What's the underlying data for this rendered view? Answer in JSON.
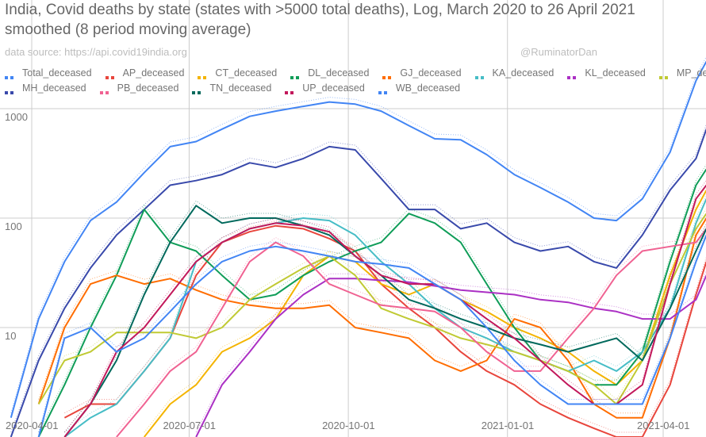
{
  "chart_data": {
    "type": "line",
    "title": "India, Covid deaths by state (states with >5000 total deaths), Log, March 2020 to 26 April 2021",
    "subtitle": "smoothed (8 period moving average)",
    "source": "data source: https://api.covid19india.org",
    "credit": "@RuminatorDan",
    "xlabel": "",
    "ylabel": "",
    "yscale": "log",
    "ylim": [
      1,
      3000
    ],
    "xlim": [
      "2020-03-14",
      "2021-04-26"
    ],
    "grid": true,
    "legend_position": "top",
    "y_ticks": [
      "1000",
      "100",
      "10"
    ],
    "y_tick_values": [
      1000,
      100,
      10
    ],
    "x_ticks": [
      "2020-04-01",
      "2020-07-01",
      "2020-10-01",
      "2021-01-01",
      "2021-04-01"
    ],
    "x": [
      "2020-03-20",
      "2020-04-05",
      "2020-04-20",
      "2020-05-05",
      "2020-05-20",
      "2020-06-05",
      "2020-06-20",
      "2020-07-05",
      "2020-07-20",
      "2020-08-05",
      "2020-08-20",
      "2020-09-05",
      "2020-09-20",
      "2020-10-05",
      "2020-10-20",
      "2020-11-05",
      "2020-11-20",
      "2020-12-05",
      "2020-12-20",
      "2021-01-05",
      "2021-01-20",
      "2021-02-05",
      "2021-02-20",
      "2021-03-05",
      "2021-03-20",
      "2021-04-05",
      "2021-04-20",
      "2021-04-26"
    ],
    "series": [
      {
        "name": "Total_deceased",
        "color": "#4285f4",
        "values": [
          1.5,
          12,
          40,
          95,
          140,
          260,
          450,
          500,
          650,
          850,
          950,
          1050,
          1150,
          1100,
          950,
          700,
          530,
          520,
          380,
          250,
          190,
          140,
          100,
          95,
          150,
          400,
          1800,
          2700
        ]
      },
      {
        "name": "MH_deceased",
        "color": "#3949ab",
        "values": [
          1,
          5,
          15,
          35,
          70,
          120,
          200,
          220,
          250,
          320,
          290,
          350,
          450,
          420,
          230,
          120,
          120,
          80,
          90,
          60,
          50,
          55,
          40,
          35,
          70,
          180,
          350,
          650
        ]
      },
      {
        "name": "AP_deceased",
        "color": "#e8453c",
        "values": [
          null,
          null,
          1.5,
          2,
          2,
          4,
          8,
          30,
          60,
          75,
          85,
          80,
          65,
          50,
          25,
          15,
          10,
          6,
          4,
          3,
          2,
          1.5,
          1.2,
          1,
          1,
          3,
          20,
          40
        ]
      },
      {
        "name": "CT_deceased",
        "color": "#f4b400",
        "values": [
          null,
          null,
          null,
          null,
          null,
          1,
          2,
          3,
          6,
          8,
          12,
          30,
          45,
          40,
          25,
          20,
          25,
          18,
          14,
          10,
          8,
          6,
          4,
          3,
          5,
          30,
          120,
          180
        ]
      },
      {
        "name": "DL_deceased",
        "color": "#0f9d58",
        "values": [
          null,
          1,
          3,
          10,
          30,
          120,
          60,
          50,
          30,
          18,
          20,
          30,
          40,
          50,
          60,
          110,
          90,
          60,
          25,
          10,
          5,
          4,
          3,
          3,
          6,
          40,
          200,
          280
        ]
      },
      {
        "name": "GJ_deceased",
        "color": "#ff6d00",
        "values": [
          null,
          2,
          10,
          25,
          30,
          25,
          28,
          22,
          18,
          16,
          15,
          15,
          16,
          10,
          9,
          8,
          5,
          4,
          5,
          12,
          10,
          5,
          2,
          1.5,
          1.5,
          8,
          70,
          100
        ]
      },
      {
        "name": "KA_deceased",
        "color": "#46bdc6",
        "values": [
          null,
          null,
          1,
          1.5,
          2,
          4,
          8,
          40,
          60,
          80,
          90,
          100,
          95,
          70,
          40,
          25,
          15,
          10,
          8,
          6,
          5,
          4,
          5,
          4,
          6,
          15,
          90,
          150
        ]
      },
      {
        "name": "KL_deceased",
        "color": "#ab30c4",
        "values": [
          null,
          null,
          null,
          null,
          null,
          null,
          null,
          1,
          3,
          6,
          12,
          20,
          28,
          28,
          27,
          26,
          24,
          22,
          21,
          20,
          18,
          17,
          15,
          14,
          12,
          12,
          18,
          30
        ]
      },
      {
        "name": "MP_deceased",
        "color": "#c0ca33",
        "values": [
          null,
          2,
          5,
          6,
          9,
          9,
          9,
          8,
          10,
          18,
          25,
          35,
          45,
          30,
          15,
          12,
          10,
          8,
          7,
          6,
          5,
          4,
          3,
          2,
          5,
          25,
          80,
          110
        ]
      },
      {
        "name": "PB_deceased",
        "color": "#f06292",
        "values": [
          null,
          null,
          null,
          null,
          1,
          2,
          4,
          6,
          15,
          40,
          60,
          45,
          25,
          20,
          16,
          15,
          14,
          10,
          6,
          4,
          4,
          8,
          15,
          30,
          50,
          55,
          60,
          80
        ]
      },
      {
        "name": "TN_deceased",
        "color": "#00695c",
        "values": [
          null,
          null,
          1,
          2,
          5,
          20,
          60,
          130,
          90,
          100,
          100,
          85,
          70,
          45,
          30,
          18,
          15,
          12,
          10,
          8,
          7,
          6,
          7,
          8,
          5,
          15,
          50,
          80
        ]
      },
      {
        "name": "UP_deceased",
        "color": "#c2185b",
        "values": [
          null,
          null,
          1,
          2,
          6,
          10,
          20,
          40,
          60,
          80,
          90,
          85,
          75,
          45,
          30,
          25,
          25,
          18,
          12,
          8,
          5,
          3,
          2,
          2,
          3,
          25,
          150,
          200
        ]
      },
      {
        "name": "WB_deceased",
        "color": "#4285f4",
        "values": [
          null,
          1,
          8,
          10,
          6,
          8,
          14,
          25,
          40,
          50,
          55,
          50,
          45,
          40,
          38,
          35,
          25,
          18,
          10,
          5,
          3,
          2,
          2,
          2,
          2,
          8,
          40,
          70
        ]
      }
    ]
  },
  "legend": {
    "rows": [
      [
        "Total_deceased",
        "AP_deceased",
        "CT_deceased",
        "DL_deceased",
        "GJ_deceased",
        "KA_deceased",
        "KL_deceased",
        "MP_deceased"
      ],
      [
        "MH_deceased",
        "PB_deceased",
        "TN_deceased",
        "UP_deceased",
        "WB_deceased"
      ]
    ]
  }
}
